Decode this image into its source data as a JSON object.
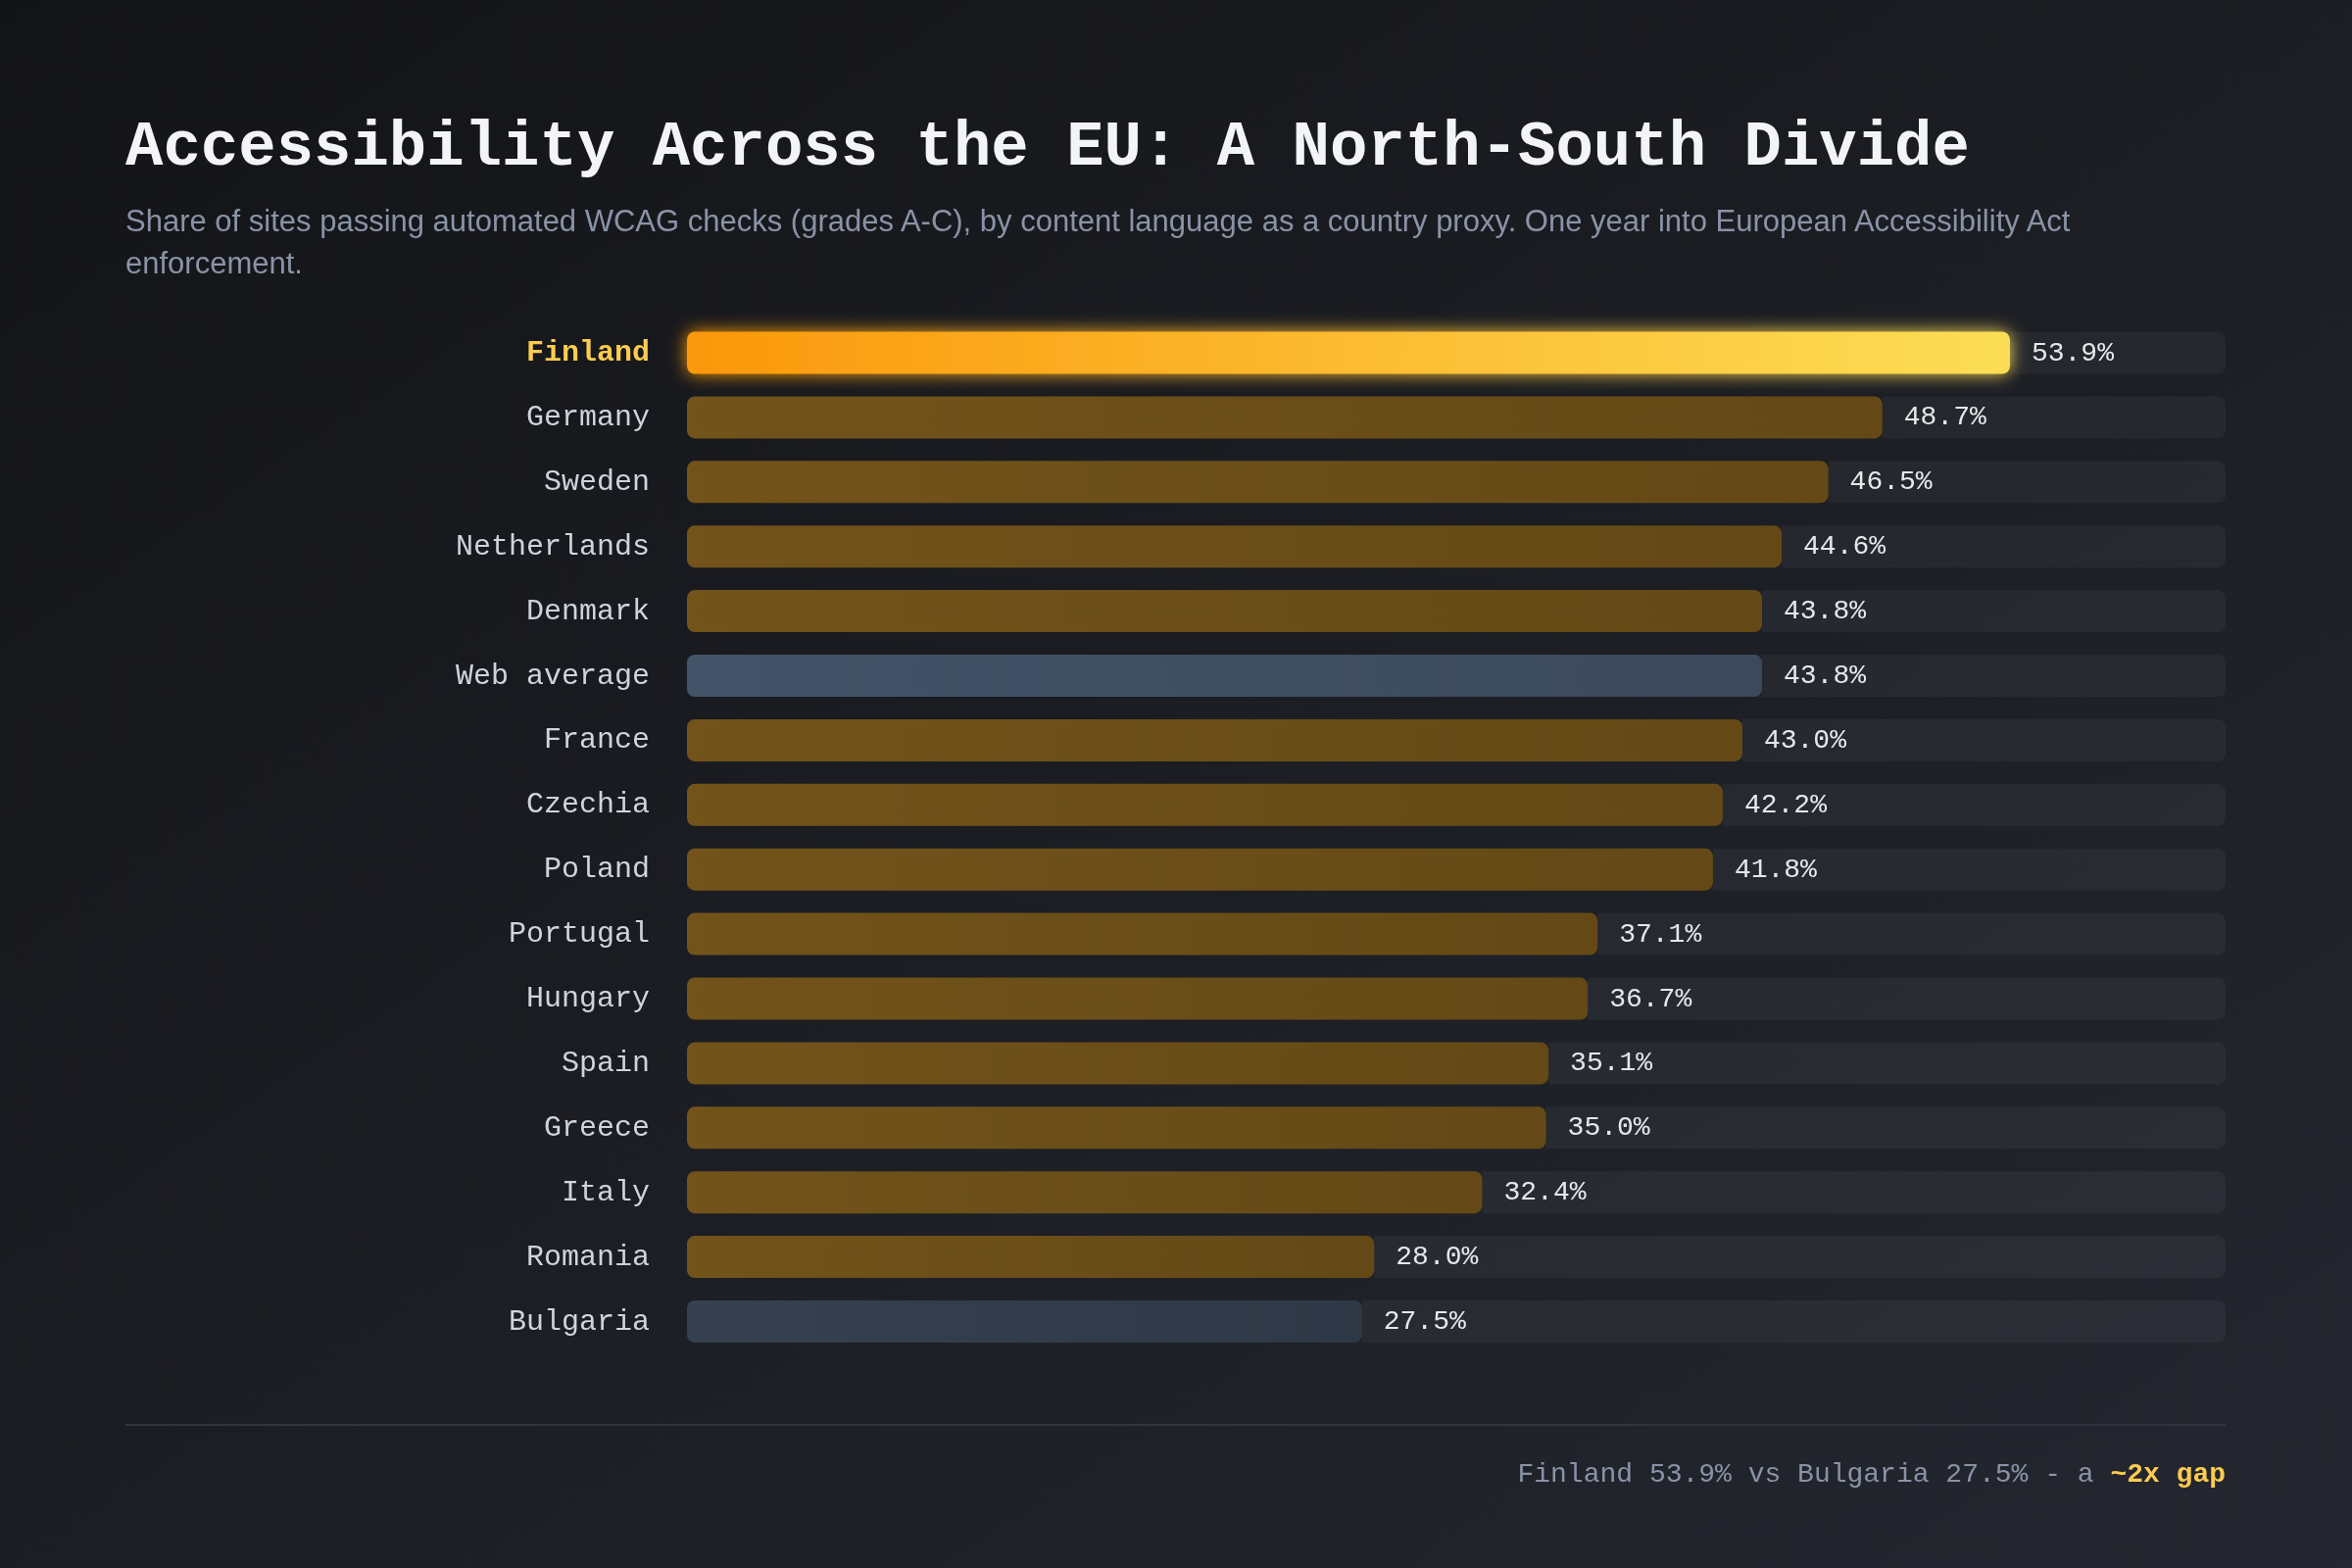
{
  "chart_data": {
    "type": "bar",
    "orientation": "horizontal",
    "title": "Accessibility Across the EU: A North-South Divide",
    "subtitle": "Share of sites passing automated WCAG checks (grades A-C), by content language as a country proxy. One year into European Accessibility Act enforcement.",
    "categories": [
      "Finland",
      "Germany",
      "Sweden",
      "Netherlands",
      "Denmark",
      "Web average",
      "France",
      "Czechia",
      "Poland",
      "Portugal",
      "Hungary",
      "Spain",
      "Greece",
      "Italy",
      "Romania",
      "Bulgaria"
    ],
    "values": [
      53.9,
      48.7,
      46.5,
      44.6,
      43.8,
      43.8,
      43.0,
      42.2,
      41.8,
      37.1,
      36.7,
      35.1,
      35.0,
      32.4,
      28.0,
      27.5
    ],
    "value_labels": [
      "53.9%",
      "48.7%",
      "46.5%",
      "44.6%",
      "43.8%",
      "43.8%",
      "43.0%",
      "42.2%",
      "41.8%",
      "37.1%",
      "36.7%",
      "35.1%",
      "35.0%",
      "32.4%",
      "28.0%",
      "27.5%"
    ],
    "colors": [
      "#fbbf24",
      "#6b4e18",
      "#6b4e18",
      "#6b4e18",
      "#6b4e18",
      "#3f4e62",
      "#6b4e18",
      "#6b4e18",
      "#6b4e18",
      "#6b4e18",
      "#6b4e18",
      "#6b4e18",
      "#6b4e18",
      "#6b4e18",
      "#6b4e18",
      "#333c4b"
    ],
    "tick_labels": "y",
    "annotations": [
      "Finland 53.9% vs Bulgaria 27.5% - a",
      "~2x gap"
    ]
  }
}
